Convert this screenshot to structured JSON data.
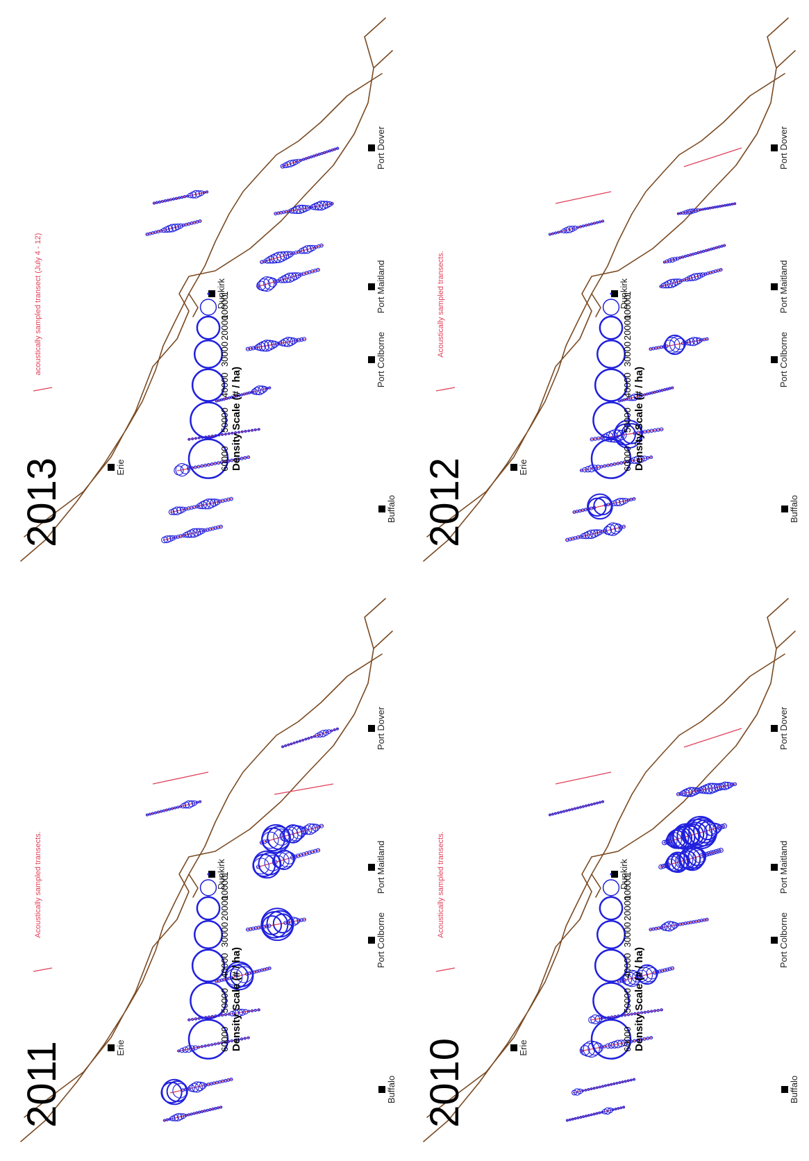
{
  "colors": {
    "coastline": "#7a4a22",
    "transect": "#e0405a",
    "density_bubble": "#2020dd",
    "city_marker": "#000000"
  },
  "cities": [
    "Port Dover",
    "Port Maitland",
    "Port Colborne",
    "Buffalo",
    "Dunkirk",
    "Erie"
  ],
  "legend": {
    "title": "Density Scale (# / ha)",
    "values": [
      1,
      10000,
      20000,
      30000,
      40000,
      50000,
      60000
    ],
    "labels": [
      "1",
      "10000",
      "20000",
      "30000",
      "40000",
      "50000",
      "60000"
    ]
  },
  "panels": [
    {
      "year": "2013",
      "transect_note": "acoustically sampled transect (July 4 - 12)"
    },
    {
      "year": "2012",
      "transect_note": "Acoustically sampled transects."
    },
    {
      "year": "2011",
      "transect_note": "Acoustically sampled transects."
    },
    {
      "year": "2010",
      "transect_note": "Acoustically sampled transects."
    }
  ]
}
